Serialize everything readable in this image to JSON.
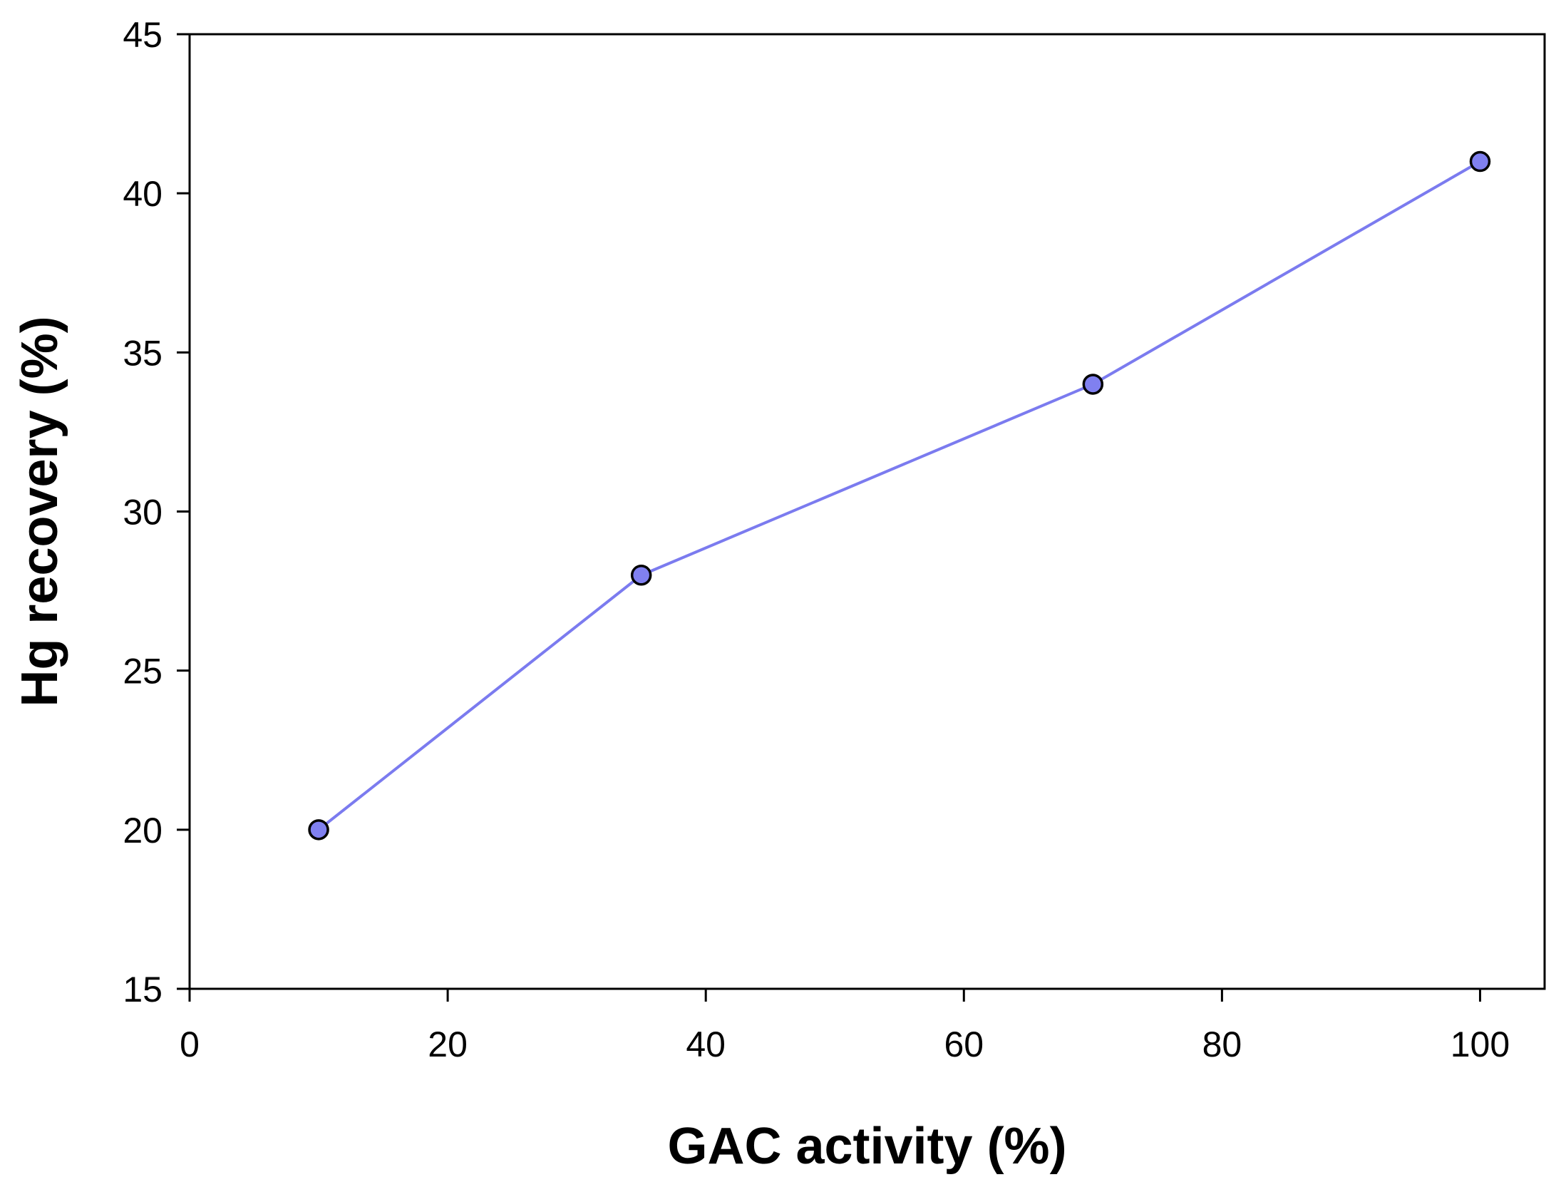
{
  "chart_data": {
    "type": "line",
    "title": "",
    "xlabel": "GAC activity (%)",
    "ylabel": "Hg recovery (%)",
    "xlim": [
      0,
      105
    ],
    "ylim": [
      15,
      45
    ],
    "xticks": [
      0,
      20,
      40,
      60,
      80,
      100
    ],
    "yticks": [
      15,
      20,
      25,
      30,
      35,
      40,
      45
    ],
    "grid": false,
    "legend": "none",
    "series": [
      {
        "x": [
          10,
          35,
          70,
          100
        ],
        "y": [
          20,
          28,
          34,
          41
        ],
        "line_color": "#7b7bef",
        "marker_fill": "#8080f0",
        "marker_edge": "#000000",
        "marker": "circle"
      }
    ]
  }
}
